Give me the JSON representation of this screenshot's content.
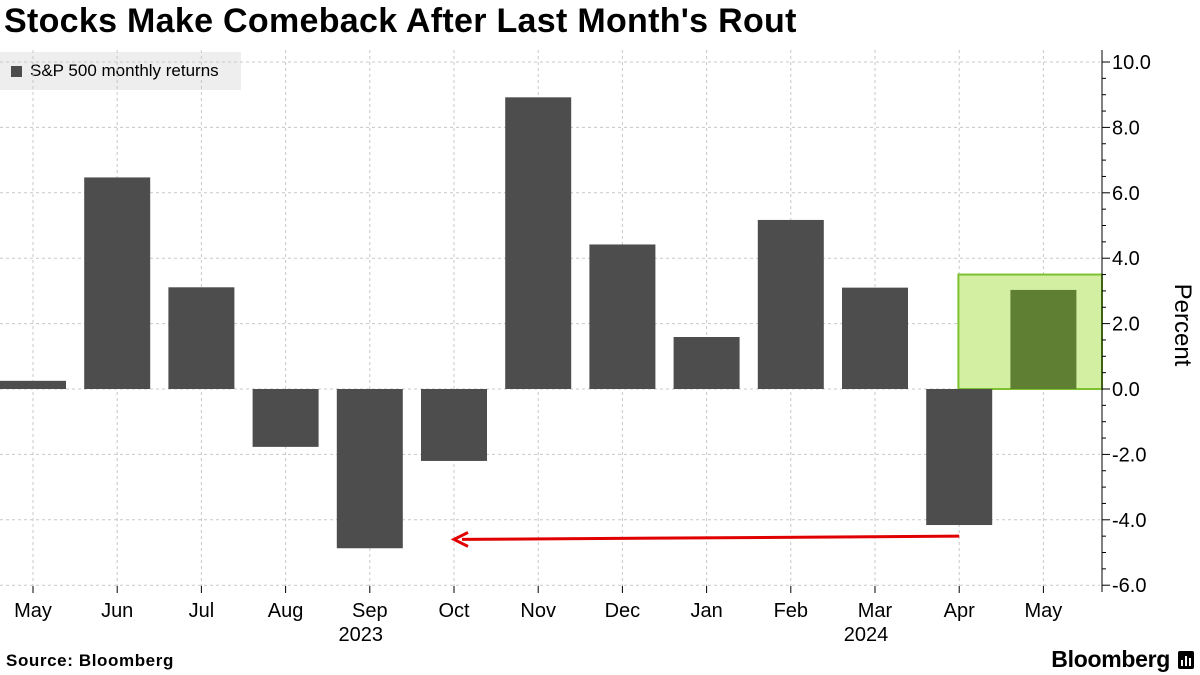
{
  "title": "Stocks Make Comeback After Last Month's Rout",
  "legend": {
    "label": "S&P 500 monthly returns"
  },
  "source": "Source:  Bloomberg",
  "brand": "Bloomberg",
  "colors": {
    "bar": "#4d4d4d",
    "highlight_fill": "#d3efa2",
    "highlight_border": "#7ec12f",
    "highlight_bar": "#5f7f32",
    "arrow": "#e00000",
    "grid": "#c8c8c8"
  },
  "chart_data": {
    "type": "bar",
    "title": "Stocks Make Comeback After Last Month's Rout",
    "xlabel": "",
    "ylabel": "Percent",
    "ylim": [
      -6.2,
      10.3
    ],
    "y_ticks": [
      10.0,
      8.0,
      6.0,
      4.0,
      2.0,
      0.0,
      -2.0,
      -4.0,
      -6.0
    ],
    "y_tick_labels": [
      "10.0",
      "8.0",
      "6.0",
      "4.0",
      "2.0",
      "0.0",
      "-2.0",
      "-4.0",
      "-6.0"
    ],
    "categories": [
      "May",
      "Jun",
      "Jul",
      "Aug",
      "Sep",
      "Oct",
      "Nov",
      "Dec",
      "Jan",
      "Feb",
      "Mar",
      "Apr",
      "May"
    ],
    "year_labels": [
      {
        "label": "2023",
        "category_index": 4
      },
      {
        "label": "2024",
        "category_index": 10
      }
    ],
    "series": [
      {
        "name": "S&P 500 monthly returns",
        "values": [
          0.25,
          6.47,
          3.11,
          -1.77,
          -4.87,
          -2.2,
          8.92,
          4.42,
          1.59,
          5.17,
          3.1,
          -4.16,
          3.03
        ]
      }
    ],
    "grid": true,
    "legend_position": "top-left",
    "annotations": [
      {
        "type": "highlight",
        "category_index": 12,
        "y_range": [
          0,
          3.5
        ]
      },
      {
        "type": "arrow",
        "from_category_index": 11,
        "to_category_index": 5,
        "y_start": -4.5,
        "y_end": -4.6
      }
    ]
  }
}
